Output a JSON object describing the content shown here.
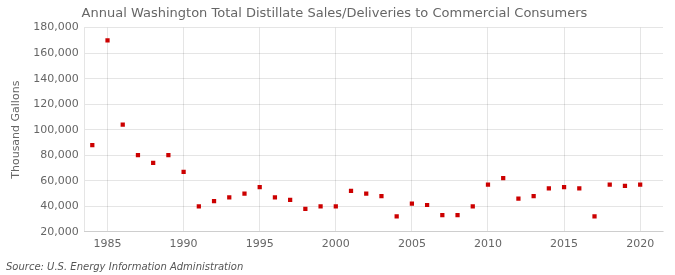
{
  "chart_data": {
    "type": "scatter",
    "title": "Annual Washington Total Distillate Sales/Deliveries to Commercial Consumers",
    "ylabel": "Thousand Gallons",
    "annotations": [
      "Source: U.S. Energy Information Administration"
    ],
    "x": [
      1984,
      1985,
      1986,
      1987,
      1988,
      1989,
      1990,
      1991,
      1992,
      1993,
      1994,
      1995,
      1996,
      1997,
      1998,
      1999,
      2000,
      2001,
      2002,
      2003,
      2004,
      2005,
      2006,
      2007,
      2008,
      2009,
      2010,
      2011,
      2012,
      2013,
      2014,
      2015,
      2016,
      2017,
      2018,
      2019,
      2020
    ],
    "values": [
      88000,
      170000,
      104000,
      80000,
      74000,
      80000,
      67000,
      40000,
      44000,
      47000,
      50000,
      55000,
      47000,
      45000,
      38000,
      40000,
      40000,
      52000,
      50000,
      48000,
      32000,
      42000,
      41000,
      33000,
      33000,
      40000,
      57000,
      62000,
      46000,
      48000,
      54000,
      55000,
      54000,
      32000,
      57000,
      56000,
      57000
    ],
    "color": "#cc0000",
    "marker": "square",
    "xlim": [
      1983.5,
      2021.5
    ],
    "xticks": [
      1985,
      1990,
      1995,
      2000,
      2005,
      2010,
      2015,
      2020
    ],
    "ylim": [
      20000,
      180000
    ],
    "yticks": [
      {
        "value": 20000,
        "label": "20,000"
      },
      {
        "value": 40000,
        "label": "40,000"
      },
      {
        "value": 60000,
        "label": "60,000"
      },
      {
        "value": 80000,
        "label": "80,000"
      },
      {
        "value": 100000,
        "label": "100,000"
      },
      {
        "value": 120000,
        "label": "120,000"
      },
      {
        "value": 140000,
        "label": "140,000"
      },
      {
        "value": 160000,
        "label": "160,000"
      },
      {
        "value": 180000,
        "label": "180,000"
      }
    ],
    "grid": true
  }
}
